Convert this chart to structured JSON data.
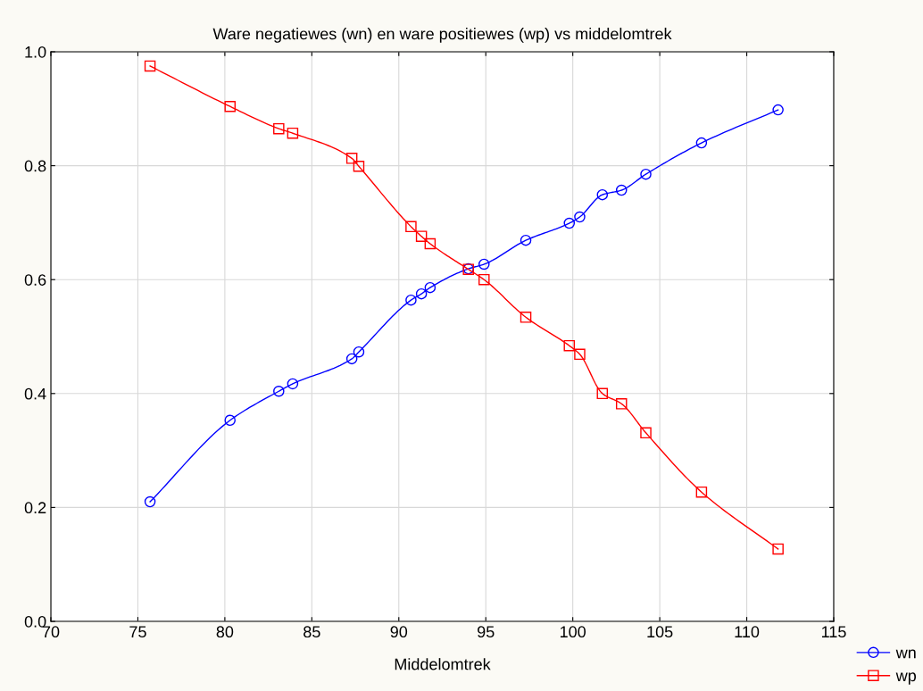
{
  "chart_data": {
    "type": "line",
    "title": "Ware negatiewes (wn) en ware positiewes (wp) vs middelomtrek",
    "xlabel": "Middelomtrek",
    "x": [
      75.7,
      80.3,
      83.1,
      83.9,
      87.3,
      87.7,
      90.7,
      91.3,
      91.8,
      94.0,
      94.9,
      97.3,
      99.8,
      100.4,
      101.7,
      102.8,
      104.2,
      107.4,
      111.8
    ],
    "series": [
      {
        "name": "wn",
        "color": "#0000ff",
        "marker": "circle",
        "values": [
          0.21,
          0.353,
          0.404,
          0.417,
          0.461,
          0.473,
          0.564,
          0.575,
          0.586,
          0.619,
          0.627,
          0.669,
          0.699,
          0.71,
          0.749,
          0.757,
          0.785,
          0.84,
          0.898
        ]
      },
      {
        "name": "wp",
        "color": "#ff0000",
        "marker": "square",
        "values": [
          0.975,
          0.904,
          0.865,
          0.857,
          0.813,
          0.799,
          0.693,
          0.676,
          0.663,
          0.618,
          0.6,
          0.534,
          0.484,
          0.469,
          0.4,
          0.382,
          0.331,
          0.227,
          0.127
        ]
      }
    ],
    "xlim": [
      70,
      115
    ],
    "xticks": [
      70,
      75,
      80,
      85,
      90,
      95,
      100,
      105,
      110,
      115
    ],
    "ylim": [
      0,
      1
    ],
    "yticks": [
      {
        "value": 0,
        "label": "0.0"
      },
      {
        "value": 0.2,
        "label": "0.2"
      },
      {
        "value": 0.4,
        "label": "0.4"
      },
      {
        "value": 0.6,
        "label": "0.6"
      },
      {
        "value": 0.8,
        "label": "0.8"
      },
      {
        "value": 1,
        "label": "1.0"
      }
    ],
    "grid": true,
    "legend": "bottom right",
    "line_style": "solid"
  }
}
